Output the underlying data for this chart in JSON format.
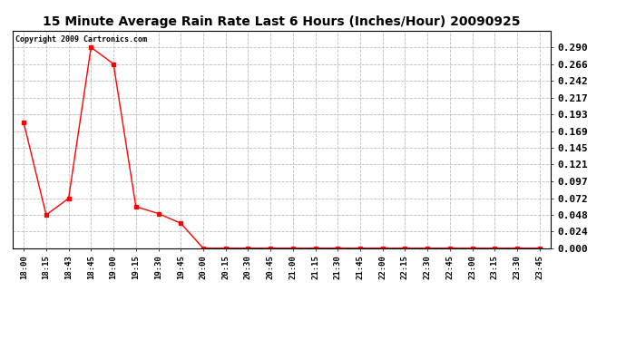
{
  "title": "15 Minute Average Rain Rate Last 6 Hours (Inches/Hour) 20090925",
  "copyright_text": "Copyright 2009 Cartronics.com",
  "x_labels": [
    "18:00",
    "18:15",
    "18:43",
    "18:45",
    "19:00",
    "19:15",
    "19:30",
    "19:45",
    "20:00",
    "20:15",
    "20:30",
    "20:45",
    "21:00",
    "21:15",
    "21:30",
    "21:45",
    "22:00",
    "22:15",
    "22:30",
    "22:45",
    "23:00",
    "23:15",
    "23:30",
    "23:45"
  ],
  "y_values": [
    0.181,
    0.048,
    0.072,
    0.29,
    0.266,
    0.06,
    0.05,
    0.036,
    0.0,
    0.0,
    0.0,
    0.0,
    0.0,
    0.0,
    0.0,
    0.0,
    0.0,
    0.0,
    0.0,
    0.0,
    0.0,
    0.0,
    0.0,
    0.0
  ],
  "line_color": "#ff0000",
  "marker": "s",
  "marker_size": 2.5,
  "ylim": [
    0.0,
    0.3141
  ],
  "yticks": [
    0.0,
    0.024,
    0.048,
    0.072,
    0.097,
    0.121,
    0.145,
    0.169,
    0.193,
    0.217,
    0.242,
    0.266,
    0.29
  ],
  "background_color": "#ffffff",
  "grid_color": "#bbbbbb",
  "title_fontsize": 10,
  "copyright_fontsize": 6,
  "tick_fontsize": 6.5,
  "ytick_fontsize": 8
}
